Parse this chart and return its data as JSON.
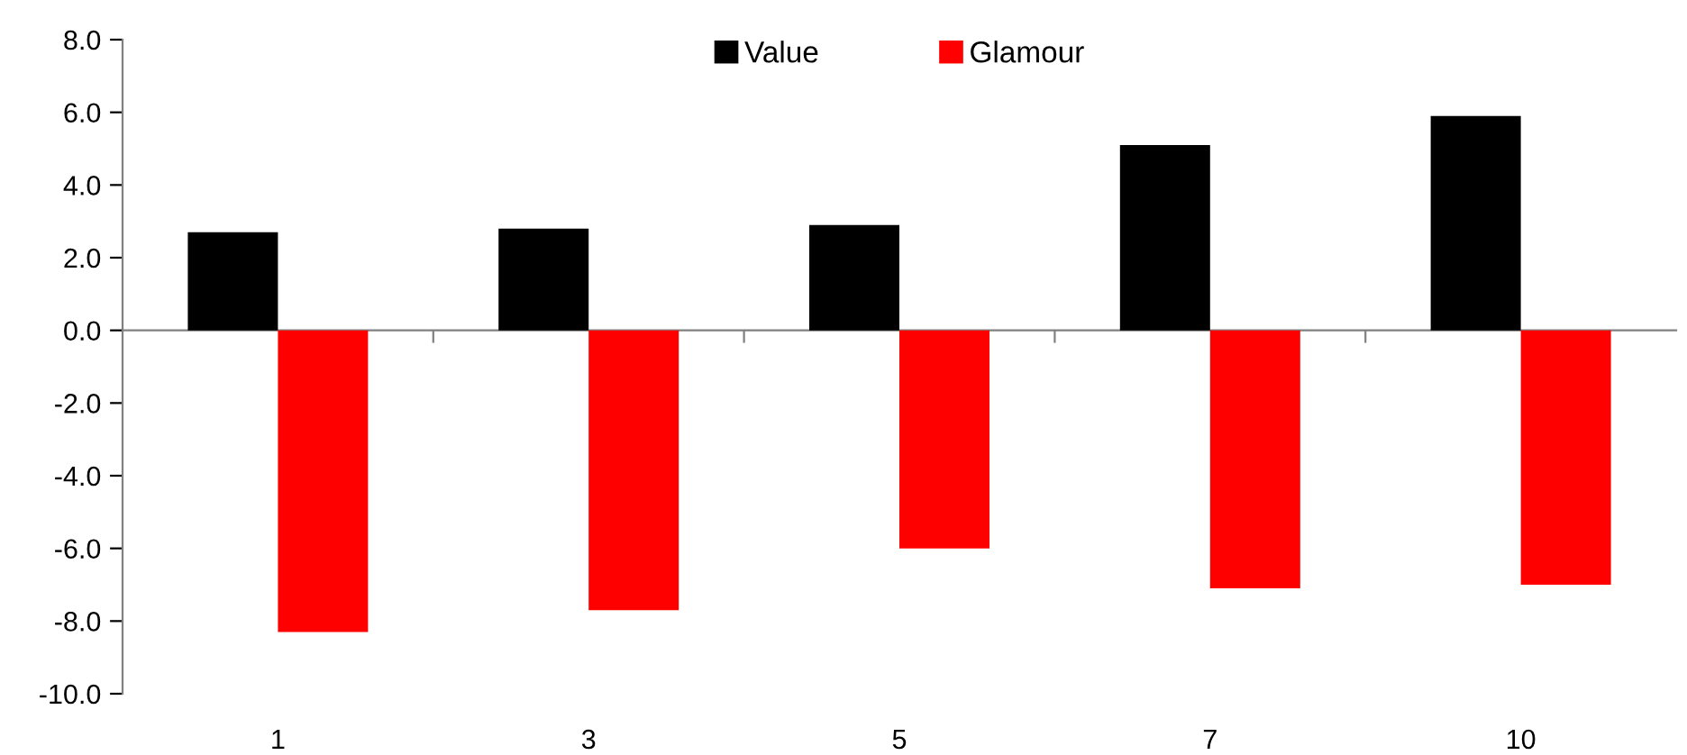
{
  "chart_data": {
    "type": "bar",
    "categories": [
      "1",
      "3",
      "5",
      "7",
      "10"
    ],
    "series": [
      {
        "name": "Value",
        "color": "#000000",
        "values": [
          2.7,
          2.8,
          2.9,
          5.1,
          5.9
        ]
      },
      {
        "name": "Glamour",
        "color": "#ff0000",
        "values": [
          -8.3,
          -7.7,
          -6.0,
          -7.1,
          -7.0
        ]
      }
    ],
    "ylim": [
      -10.0,
      8.0
    ],
    "yticks": [
      {
        "value": -10,
        "label": "-10.0"
      },
      {
        "value": -8,
        "label": "-8.0"
      },
      {
        "value": -6,
        "label": "-6.0"
      },
      {
        "value": -4,
        "label": "-4.0"
      },
      {
        "value": -2,
        "label": "-2.0"
      },
      {
        "value": 0,
        "label": "0.0"
      },
      {
        "value": 2,
        "label": "2.0"
      },
      {
        "value": 4,
        "label": "4.0"
      },
      {
        "value": 6,
        "label": "6.0"
      },
      {
        "value": 8,
        "label": "8.0"
      }
    ],
    "legend": "top"
  }
}
